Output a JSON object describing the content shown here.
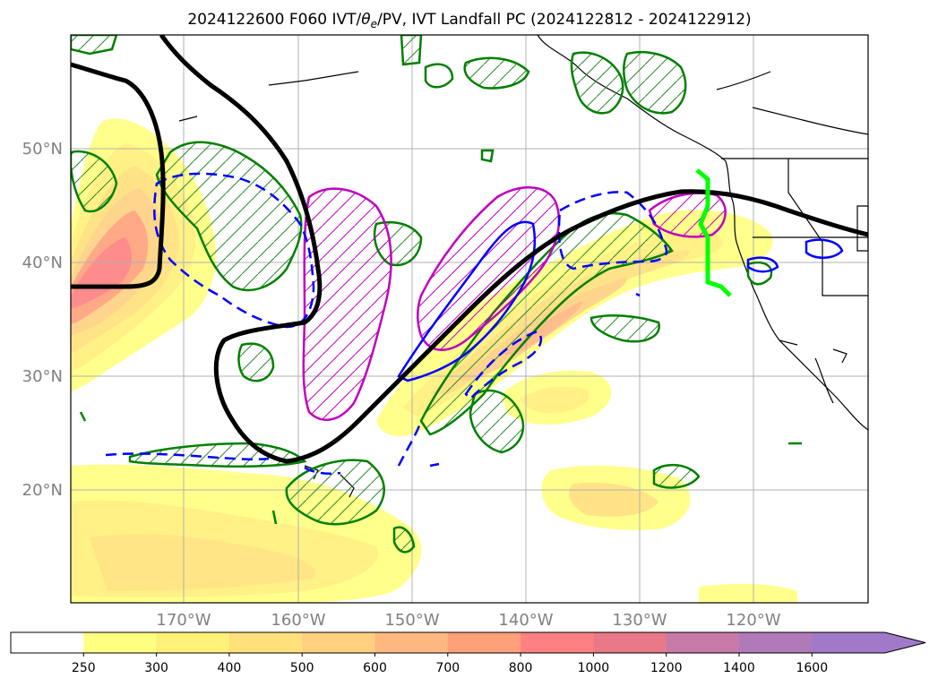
{
  "title": "2024122600 F060 IVT/θe/PV, IVT Landfall PC (2024122812 - 2024122912)",
  "title_parts": {
    "prefix": "2024122600 F060 IVT/",
    "theta": "θ",
    "theta_sub": "e",
    "suffix": "/PV, IVT Landfall PC (2024122812 - 2024122912)"
  },
  "map": {
    "projection": "PlateCarree",
    "lon_range": [
      -180,
      -110
    ],
    "lat_range": [
      10,
      60
    ],
    "lat_labels": [
      "50°N",
      "40°N",
      "30°N",
      "20°N"
    ],
    "lon_labels": [
      "170°W",
      "160°W",
      "150°W",
      "140°W",
      "130°W",
      "120°W"
    ],
    "gridlines": true
  },
  "colorbar": {
    "ticks": [
      "250",
      "300",
      "400",
      "500",
      "600",
      "700",
      "800",
      "1000",
      "1200",
      "1400",
      "1600"
    ],
    "colors": [
      "#ffffff",
      "#ffff80",
      "#fff07a",
      "#ffe07a",
      "#ffd080",
      "#ffb880",
      "#ffa07a",
      "#ff8080",
      "#e97888",
      "#c77aa8",
      "#b07ab8",
      "#a07ac8"
    ],
    "extend": "max"
  },
  "legend_colors": {
    "ivt_fill_low": "#ffff80",
    "ivt_fill_high": "#ff8080",
    "pv_contour": "#008000",
    "theta_positive": "#0000ff",
    "theta_negative_dashed": "#0000ff",
    "pc_contour": "#c000c0",
    "landfall_line": "#00ff00",
    "jet_contour": "#000000"
  }
}
